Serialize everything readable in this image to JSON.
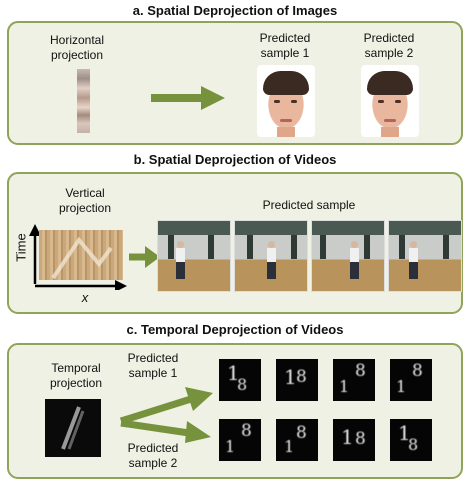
{
  "sections": {
    "a": {
      "title": "a. Spatial Deprojection of Images",
      "input_label": "Horizontal\nprojection",
      "outputs": [
        "Predicted\nsample 1",
        "Predicted\nsample 2"
      ]
    },
    "b": {
      "title": "b. Spatial Deprojection of Videos",
      "input_label": "Vertical\nprojection",
      "output_label": "Predicted sample",
      "y_axis_label": "Time",
      "x_axis_label": "x"
    },
    "c": {
      "title": "c. Temporal Deprojection of Videos",
      "input_label": "Temporal\nprojection",
      "branches": [
        "Predicted\nsample 1",
        "Predicted\nsample 2"
      ]
    }
  },
  "colors": {
    "panel_fill": "#eef1e3",
    "panel_border": "#8fa35a",
    "arrow": "#76923c"
  },
  "icons": [
    "right-arrow-icon",
    "axis-arrow-icon"
  ]
}
